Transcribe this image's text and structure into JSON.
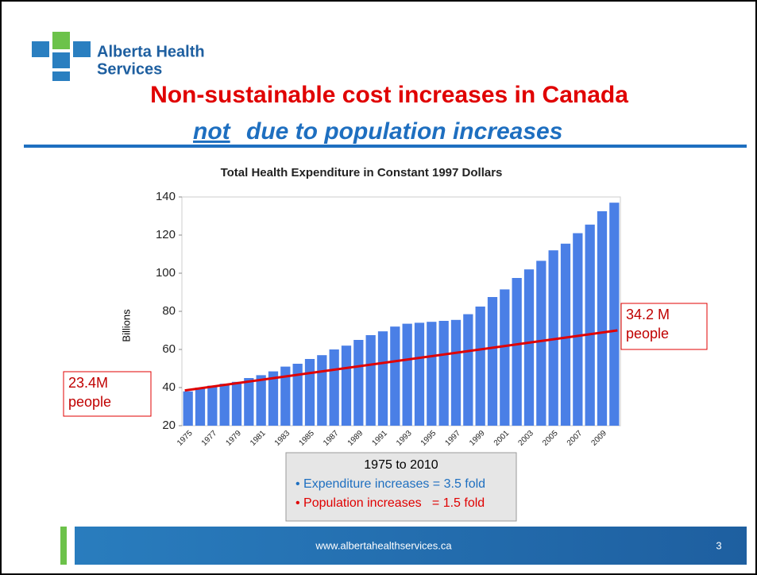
{
  "header": {
    "logo_text": [
      "Alberta Health",
      "Services"
    ],
    "title": "Non-sustainable cost increases in Canada",
    "subtitle_emphasis": "not",
    "subtitle_rest": "due to population increases"
  },
  "chart_data": {
    "type": "bar",
    "title": "Total Health Expenditure in Constant 1997 Dollars",
    "y_label": "Billions",
    "categories": [
      "1975",
      null,
      "1977",
      null,
      "1979",
      null,
      "1981",
      null,
      "1983",
      null,
      "1985",
      null,
      "1987",
      null,
      "1989",
      null,
      "1991",
      null,
      "1993",
      null,
      "1995",
      null,
      "1997",
      null,
      "1999",
      null,
      "2001",
      null,
      "2003",
      null,
      "2005",
      null,
      "2007",
      null,
      "2009",
      null
    ],
    "values": [
      38,
      40,
      41,
      42,
      43,
      45,
      46.5,
      48.5,
      51,
      52.5,
      55,
      57,
      60,
      62,
      65,
      67.5,
      69.5,
      72,
      73.5,
      74,
      74.5,
      75,
      75.5,
      78.5,
      82.5,
      87.5,
      91.5,
      97.5,
      102,
      106.5,
      112,
      115.5,
      121,
      125.5,
      132.5,
      137
    ],
    "color": "#4a7fe6",
    "ylim": [
      20,
      140
    ],
    "yticks": [
      20,
      40,
      60,
      80,
      100,
      120,
      140
    ],
    "trend_line": {
      "color": "#e00000",
      "start": 38.5,
      "end": 70
    },
    "annotations": [
      {
        "lines": [
          "23.4M",
          "people"
        ]
      },
      {
        "lines": [
          "34.2 M",
          "people"
        ]
      }
    ]
  },
  "info_box": {
    "heading": "1975 to 2010",
    "lines": [
      "• Expenditure increases = 3.5 fold",
      "• Population increases   = 1.5 fold"
    ]
  },
  "footer": {
    "url": "www.albertahealthservices.ca",
    "page": "3"
  }
}
